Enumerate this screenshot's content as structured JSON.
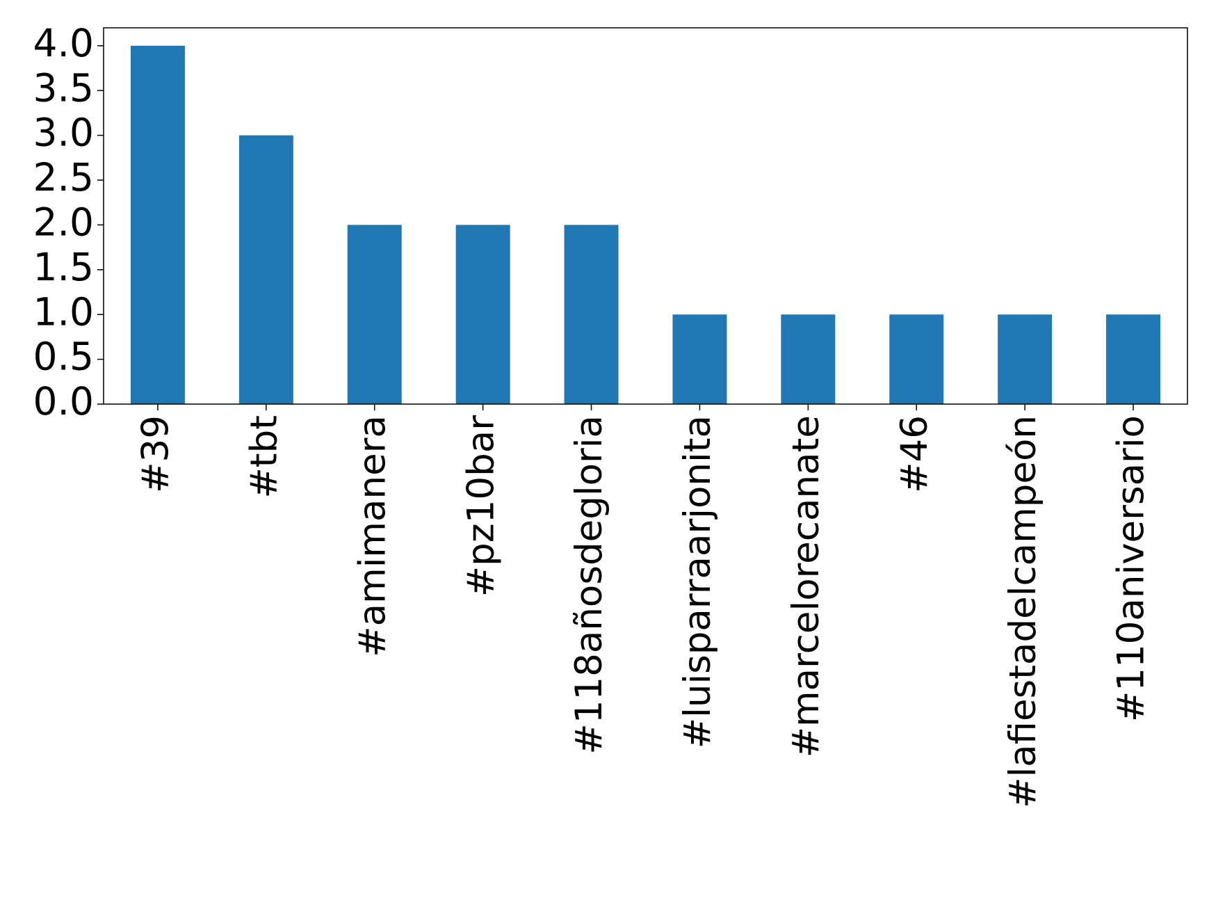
{
  "chart_data": {
    "type": "bar",
    "categories": [
      "#39",
      "#tbt",
      "#amimanera",
      "#pz10bar",
      "#118añosdegloria",
      "#luisparraarjonita",
      "#marcelorecanate",
      "#46",
      "#lafiestadelcampeón",
      "#110aniversario"
    ],
    "values": [
      4,
      3,
      2,
      2,
      2,
      1,
      1,
      1,
      1,
      1
    ],
    "color": "#1f77b4",
    "ylim": [
      0,
      4.2
    ],
    "yticks": [
      {
        "value": 0,
        "label": "0.0"
      },
      {
        "value": 0.5,
        "label": "0.5"
      },
      {
        "value": 1,
        "label": "1.0"
      },
      {
        "value": 1.5,
        "label": "1.5"
      },
      {
        "value": 2,
        "label": "2.0"
      },
      {
        "value": 2.5,
        "label": "2.5"
      },
      {
        "value": 3,
        "label": "3.0"
      },
      {
        "value": 3.5,
        "label": "3.5"
      },
      {
        "value": 4,
        "label": "4.0"
      }
    ],
    "grid": false
  }
}
